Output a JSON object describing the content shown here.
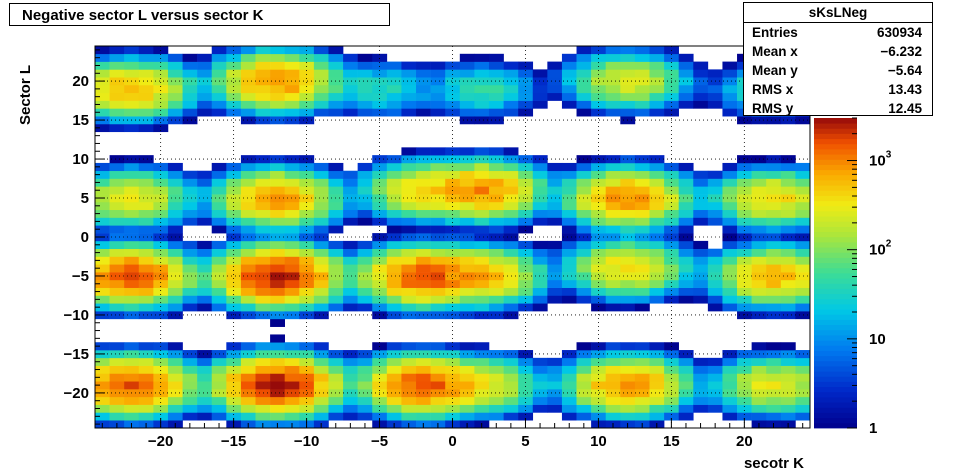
{
  "title": "Negative sector L versus sector K",
  "stats": {
    "name": "sKsLNeg",
    "rows": [
      {
        "key": "Entries",
        "value": "630934"
      },
      {
        "key": "Mean x",
        "value": "−6.232"
      },
      {
        "key": "Mean y",
        "value": "−5.64"
      },
      {
        "key": "RMS x",
        "value": "13.43"
      },
      {
        "key": "RMS y",
        "value": "12.45"
      }
    ]
  },
  "chart_data": {
    "type": "heatmap",
    "title": "Negative sector L versus sector K",
    "xlabel": "secotr K",
    "ylabel": "Sector L",
    "xlim": [
      -24.5,
      24.5
    ],
    "ylim": [
      -24.5,
      24.5
    ],
    "x_ticks": [
      -20,
      -15,
      -10,
      -5,
      0,
      5,
      10,
      15,
      20
    ],
    "x_tick_labels": [
      "−20",
      "−15",
      "−10",
      "−5",
      "0",
      "5",
      "10",
      "15",
      "20"
    ],
    "y_ticks": [
      -20,
      -15,
      -10,
      -5,
      0,
      5,
      10,
      15,
      20
    ],
    "y_tick_labels": [
      "−20",
      "−15",
      "−10",
      "−5",
      "0",
      "5",
      "10",
      "15",
      "20"
    ],
    "colorbar": {
      "scale": "log",
      "range": [
        1,
        3000
      ],
      "tick_labels": [
        "1",
        "10",
        "10^2",
        "10^3"
      ]
    },
    "grid": true,
    "blobs": [
      {
        "cx": -22,
        "cy": 19,
        "peak": 600
      },
      {
        "cx": -12,
        "cy": 20,
        "peak": 900
      },
      {
        "cx": -5,
        "cy": 19,
        "peak": 40
      },
      {
        "cx": 2,
        "cy": 19,
        "peak": 50
      },
      {
        "cx": 12,
        "cy": 20,
        "peak": 250
      },
      {
        "cx": 22,
        "cy": 19,
        "peak": 60
      },
      {
        "cx": -22,
        "cy": 5,
        "peak": 300
      },
      {
        "cx": -12,
        "cy": 5,
        "peak": 800
      },
      {
        "cx": -2,
        "cy": 6,
        "peak": 400
      },
      {
        "cx": 2,
        "cy": 6,
        "peak": 900
      },
      {
        "cx": 12,
        "cy": 5,
        "peak": 900
      },
      {
        "cx": 22,
        "cy": 5,
        "peak": 400
      },
      {
        "cx": -22,
        "cy": -5,
        "peak": 1500
      },
      {
        "cx": -12,
        "cy": -5,
        "peak": 2500
      },
      {
        "cx": -2,
        "cy": -5,
        "peak": 1500
      },
      {
        "cx": 2,
        "cy": -5,
        "peak": 600
      },
      {
        "cx": 12,
        "cy": -4,
        "peak": 400
      },
      {
        "cx": 22,
        "cy": -5,
        "peak": 600
      },
      {
        "cx": -22,
        "cy": -19,
        "peak": 1500
      },
      {
        "cx": -12,
        "cy": -19,
        "peak": 2500
      },
      {
        "cx": -2,
        "cy": -19,
        "peak": 1500
      },
      {
        "cx": 2,
        "cy": -19,
        "peak": 300
      },
      {
        "cx": 12,
        "cy": -19,
        "peak": 900
      },
      {
        "cx": 22,
        "cy": -19,
        "peak": 300
      }
    ]
  }
}
